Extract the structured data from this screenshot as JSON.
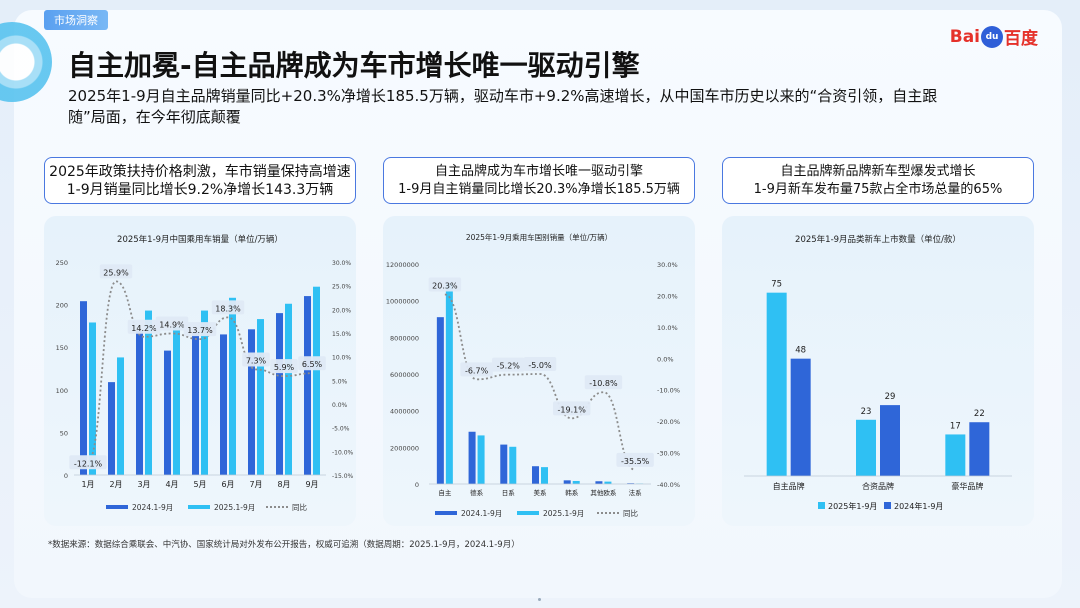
{
  "tag": "市场洞察",
  "logo": {
    "bai": "Bai",
    "du": "du",
    "cn": "百度"
  },
  "title": "自主加冕-自主品牌成为车市增长唯一驱动引擎",
  "subtitle": "2025年1-9月自主品牌销量同比+20.3%净增长185.5万辆，驱动车市+9.2%高速增长，从中国车市历史以来的“合资引领，自主跟随”局面，在今年彻底颠覆",
  "sections": [
    {
      "line1": "2025年政策扶持价格刺激，车市销量保持高增速",
      "line2": "1-9月销量同比增长9.2%净增长143.3万辆"
    },
    {
      "line1": "自主品牌成为车市增长唯一驱动引擎",
      "line2": "1-9月自主销量同比增长20.3%净增长185.5万辆"
    },
    {
      "line1": "自主品牌新品牌新车型爆发式增长",
      "line2": "1-9月新车发布量75款占全市场总量的65%"
    }
  ],
  "footnote": "*数据来源：数据综合乘联会、中汽协、国家统计局对外发布公开报告，权威可追溯（数据周期：2025.1-9月，2024.1-9月）",
  "colors": {
    "dark_bar": "#2f66d8",
    "light_bar": "#2fc0f3",
    "line": "#8c8c8c"
  },
  "chart_data": [
    {
      "type": "bar",
      "title": "2025年1-9月中国乘用车销量（单位/万辆）",
      "categories": [
        "1月",
        "2月",
        "3月",
        "4月",
        "5月",
        "6月",
        "7月",
        "8月",
        "9月"
      ],
      "series": [
        {
          "name": "2024.1-9月",
          "values": [
            204,
            109,
            169,
            146,
            168,
            165,
            171,
            190,
            210
          ]
        },
        {
          "name": "2025.1-9月",
          "values": [
            179,
            138,
            193,
            174,
            193,
            208,
            183,
            201,
            221
          ]
        },
        {
          "name": "同比",
          "axis": "right",
          "values": [
            -12.1,
            25.9,
            14.2,
            14.9,
            13.7,
            18.3,
            7.3,
            5.9,
            6.5
          ]
        }
      ],
      "data_labels": [
        "-12.1%",
        "25.9%",
        "14.2%",
        "14.9%",
        "13.7%",
        "18.3%",
        "7.3%",
        "5.9%",
        "6.5%"
      ],
      "y_ticks": [
        "0",
        "50",
        "100",
        "150",
        "200",
        "250"
      ],
      "ylim": [
        0,
        250
      ],
      "y2_ticks": [
        "-15.0%",
        "-10.0%",
        "-5.0%",
        "0.0%",
        "5.0%",
        "10.0%",
        "15.0%",
        "20.0%",
        "25.0%",
        "30.0%"
      ],
      "y2lim": [
        -15,
        30
      ],
      "legend": "bottom"
    },
    {
      "type": "bar",
      "title": "2025年1-9月乘用车国别销量（单位/万辆）",
      "categories": [
        "自主",
        "德系",
        "日系",
        "美系",
        "韩系",
        "其他欧系",
        "法系"
      ],
      "series": [
        {
          "name": "2024.1-9月",
          "values": [
            9100000,
            2850000,
            2150000,
            970000,
            200000,
            150000,
            40000
          ]
        },
        {
          "name": "2025.1-9月",
          "values": [
            10950000,
            2650000,
            2030000,
            920000,
            165000,
            130000,
            25000
          ]
        },
        {
          "name": "同比",
          "axis": "right",
          "values": [
            20.3,
            -6.7,
            -5.2,
            -5.0,
            -19.1,
            -10.8,
            -35.5
          ]
        }
      ],
      "data_labels": [
        "20.3%",
        "-6.7%",
        "-5.2%",
        "-5.0%",
        "-19.1%",
        "-10.8%",
        "-35.5%"
      ],
      "y_ticks": [
        "0",
        "2000000",
        "4000000",
        "6000000",
        "8000000",
        "10000000",
        "12000000"
      ],
      "ylim": [
        0,
        12000000
      ],
      "y2_ticks": [
        "-40.0%",
        "-30.0%",
        "-20.0%",
        "-10.0%",
        "0.0%",
        "10.0%",
        "20.0%",
        "30.0%"
      ],
      "y2lim": [
        -40,
        30
      ],
      "legend": "bottom"
    },
    {
      "type": "bar",
      "title": "2025年1-9月品类新车上市数量（单位/款）",
      "categories": [
        "自主品牌",
        "合资品牌",
        "豪华品牌"
      ],
      "series": [
        {
          "name": "2025年1-9月",
          "values": [
            75,
            23,
            17
          ]
        },
        {
          "name": "2024年1-9月",
          "values": [
            48,
            29,
            22
          ]
        }
      ],
      "data_labels": [
        [
          "75",
          "23",
          "17"
        ],
        [
          "48",
          "29",
          "22"
        ]
      ],
      "legend": "bottom"
    }
  ]
}
